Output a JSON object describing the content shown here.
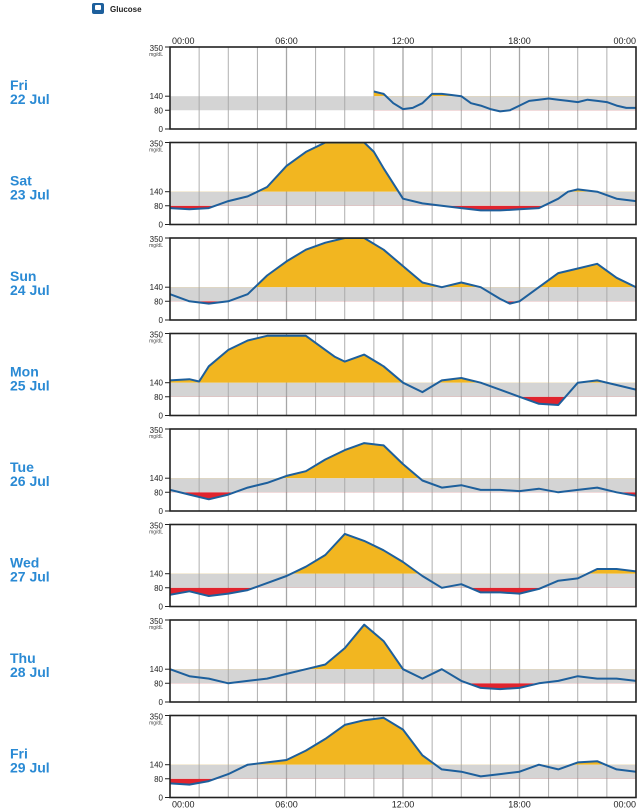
{
  "chart_data": {
    "type": "area",
    "legend": {
      "label": "Glucose",
      "color": "#1d5f9c"
    },
    "unit": "mg/dL",
    "ylim": [
      0,
      350
    ],
    "y_ticks": [
      350,
      140,
      80,
      0
    ],
    "target_range": [
      80,
      140
    ],
    "x_ticks": [
      "00:00",
      "06:00",
      "12:00",
      "18:00",
      "00:00"
    ],
    "colors": {
      "line": "#1d5f9c",
      "high": "#f2b620",
      "low": "#e0242e",
      "target_band": "#d4d4d4"
    },
    "series": [
      {
        "name": "Fri 22 Jul",
        "day": "Fri",
        "date": "22 Jul",
        "x": [
          10.5,
          11,
          11.5,
          12,
          12.5,
          13,
          13.5,
          14,
          14.5,
          15,
          15.5,
          16,
          16.5,
          17,
          17.5,
          18,
          18.5,
          19,
          19.5,
          20,
          20.5,
          21,
          21.5,
          22,
          22.5,
          23,
          23.5,
          24
        ],
        "y": [
          160,
          150,
          110,
          85,
          90,
          110,
          150,
          150,
          145,
          140,
          110,
          100,
          85,
          75,
          80,
          100,
          120,
          125,
          130,
          125,
          120,
          115,
          125,
          120,
          115,
          100,
          90,
          90
        ]
      },
      {
        "name": "Sat 23 Jul",
        "day": "Sat",
        "date": "23 Jul",
        "x": [
          0,
          1,
          2,
          3,
          4,
          5,
          6,
          7,
          8,
          9,
          10,
          10.5,
          11,
          12,
          13,
          14,
          15,
          16,
          17,
          18,
          19,
          20,
          20.5,
          21,
          22,
          23,
          24
        ],
        "y": [
          70,
          65,
          70,
          100,
          120,
          160,
          250,
          310,
          350,
          350,
          350,
          310,
          240,
          110,
          90,
          80,
          70,
          60,
          60,
          65,
          70,
          110,
          140,
          150,
          140,
          110,
          100
        ]
      },
      {
        "name": "Sun 24 Jul",
        "day": "Sun",
        "date": "24 Jul",
        "x": [
          0,
          1,
          2,
          3,
          4,
          5,
          6,
          7,
          8,
          9,
          10,
          11,
          12,
          13,
          14,
          15,
          16,
          17,
          17.5,
          18,
          19,
          20,
          21,
          22,
          23,
          24
        ],
        "y": [
          110,
          80,
          70,
          80,
          110,
          190,
          250,
          300,
          330,
          350,
          350,
          300,
          230,
          160,
          140,
          160,
          140,
          90,
          70,
          80,
          140,
          200,
          220,
          240,
          180,
          140
        ]
      },
      {
        "name": "Mon 25 Jul",
        "day": "Mon",
        "date": "25 Jul",
        "x": [
          0,
          1,
          1.5,
          2,
          3,
          4,
          5,
          6,
          7,
          8,
          8.5,
          9,
          10,
          11,
          12,
          13,
          14,
          15,
          16,
          17,
          18,
          19,
          20,
          21,
          22,
          23,
          24
        ],
        "y": [
          150,
          155,
          145,
          210,
          280,
          320,
          340,
          340,
          340,
          280,
          250,
          230,
          260,
          210,
          140,
          100,
          150,
          160,
          140,
          110,
          80,
          50,
          45,
          140,
          150,
          130,
          110
        ]
      },
      {
        "name": "Tue 26 Jul",
        "day": "Tue",
        "date": "26 Jul",
        "x": [
          0,
          1,
          2,
          3,
          4,
          5,
          6,
          7,
          8,
          9,
          10,
          11,
          12,
          13,
          14,
          15,
          16,
          17,
          18,
          19,
          20,
          21,
          22,
          23,
          24
        ],
        "y": [
          90,
          70,
          50,
          70,
          100,
          120,
          150,
          170,
          220,
          260,
          290,
          280,
          200,
          130,
          100,
          110,
          90,
          90,
          85,
          95,
          80,
          90,
          100,
          80,
          65
        ]
      },
      {
        "name": "Wed 27 Jul",
        "day": "Wed",
        "date": "27 Jul",
        "x": [
          0,
          1,
          2,
          3,
          4,
          5,
          6,
          7,
          8,
          9,
          10,
          11,
          12,
          13,
          14,
          15,
          16,
          17,
          18,
          19,
          20,
          21,
          22,
          23,
          24
        ],
        "y": [
          50,
          65,
          45,
          55,
          70,
          100,
          130,
          170,
          220,
          310,
          280,
          240,
          190,
          130,
          80,
          95,
          60,
          60,
          55,
          75,
          110,
          120,
          160,
          160,
          150
        ]
      },
      {
        "name": "Thu 28 Jul",
        "day": "Thu",
        "date": "28 Jul",
        "x": [
          0,
          1,
          2,
          3,
          4,
          5,
          6,
          7,
          8,
          9,
          10,
          11,
          12,
          13,
          14,
          15,
          16,
          17,
          18,
          19,
          20,
          21,
          22,
          23,
          24
        ],
        "y": [
          140,
          110,
          100,
          80,
          90,
          100,
          120,
          140,
          160,
          230,
          330,
          260,
          140,
          100,
          140,
          90,
          60,
          55,
          60,
          80,
          90,
          110,
          100,
          100,
          90
        ]
      },
      {
        "name": "Fri 29 Jul",
        "day": "Fri",
        "date": "29 Jul",
        "x": [
          0,
          1,
          2,
          3,
          4,
          5,
          6,
          7,
          8,
          9,
          10,
          11,
          12,
          13,
          14,
          15,
          16,
          17,
          18,
          19,
          20,
          21,
          22,
          23,
          24
        ],
        "y": [
          60,
          55,
          70,
          100,
          140,
          150,
          160,
          200,
          250,
          310,
          330,
          340,
          290,
          180,
          120,
          110,
          90,
          100,
          110,
          140,
          120,
          150,
          155,
          120,
          110
        ]
      }
    ]
  }
}
